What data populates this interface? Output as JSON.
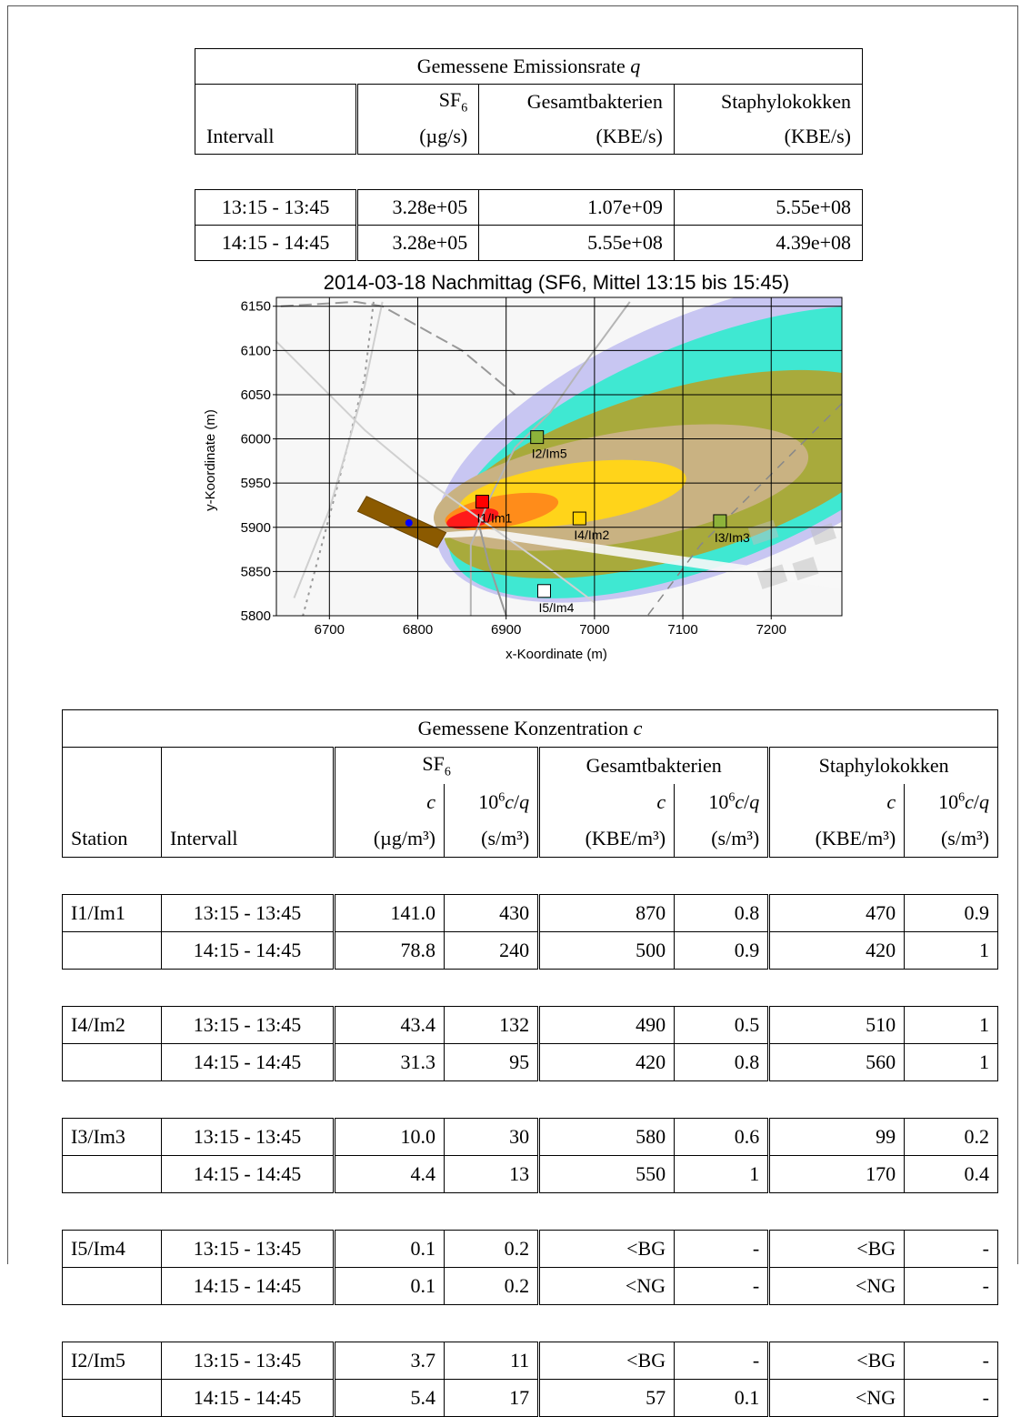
{
  "emission": {
    "title": "Gemessene Emissionsrate q",
    "col_interval": "Intervall",
    "col_sf6": "SF6",
    "col_sf6_unit": "(µg/s)",
    "col_bact": "Gesamtbakterien",
    "col_bact_unit": "(KBE/s)",
    "col_staph": "Staphylokokken",
    "col_staph_unit": "(KBE/s)",
    "rows": [
      {
        "interval": "13:15 - 13:45",
        "sf6": "3.28e+05",
        "bact": "1.07e+09",
        "staph": "5.55e+08"
      },
      {
        "interval": "14:15 - 14:45",
        "sf6": "3.28e+05",
        "bact": "5.55e+08",
        "staph": "4.39e+08"
      }
    ]
  },
  "chart_data": {
    "type": "heatmap",
    "title": "2014-03-18 Nachmittag (SF6, Mittel 13:15 bis 15:45)",
    "xlabel": "x-Koordinate (m)",
    "ylabel": "y-Koordinate (m)",
    "xlim": [
      6640,
      7280
    ],
    "ylim": [
      5800,
      6160
    ],
    "xticks": [
      6700,
      6800,
      6900,
      7000,
      7100,
      7200
    ],
    "yticks": [
      5800,
      5850,
      5900,
      5950,
      6000,
      6050,
      6100,
      6150
    ],
    "source": {
      "x": 6790,
      "y": 5905
    },
    "stations": [
      {
        "label": "I1/Im1",
        "x": 6873,
        "y": 5929,
        "color": "#ff0000"
      },
      {
        "label": "I2/Im5",
        "x": 6935,
        "y": 6002,
        "color": "#8db33a"
      },
      {
        "label": "I4/Im2",
        "x": 6983,
        "y": 5910,
        "color": "#ffd400"
      },
      {
        "label": "I3/Im3",
        "x": 7142,
        "y": 5907,
        "color": "#8db33a"
      },
      {
        "label": "I5/Im4",
        "x": 6943,
        "y": 5828,
        "color": "#ffffff"
      }
    ],
    "colors": {
      "lavender": "#c8c6f2",
      "turquoise": "#3fe8d2",
      "olive": "#a8aa3c",
      "tan": "#c9b282",
      "yellow": "#ffd41a",
      "orange": "#ff8c1a",
      "red": "#ff1a1a",
      "building": "#8b5a00"
    }
  },
  "concentration": {
    "title": "Gemessene Konzentration c",
    "grp_sf6": "SF6",
    "grp_bact": "Gesamtbakterien",
    "grp_staph": "Staphylokokken",
    "sub_c": "c",
    "sub_ratio": "10^6 c/q",
    "col_station": "Station",
    "col_interval": "Intervall",
    "unit_sf6_c": "(µg/m³)",
    "unit_ratio": "(s/m³)",
    "unit_kbe": "(KBE/m³)",
    "rows": [
      {
        "station": "I1/Im1",
        "interval": "13:15 - 13:45",
        "sf6_c": "141.0",
        "sf6_r": "430",
        "b_c": "870",
        "b_r": "0.8",
        "s_c": "470",
        "s_r": "0.9"
      },
      {
        "station": "",
        "interval": "14:15 - 14:45",
        "sf6_c": "78.8",
        "sf6_r": "240",
        "b_c": "500",
        "b_r": "0.9",
        "s_c": "420",
        "s_r": "1"
      },
      {
        "station": "I4/Im2",
        "interval": "13:15 - 13:45",
        "sf6_c": "43.4",
        "sf6_r": "132",
        "b_c": "490",
        "b_r": "0.5",
        "s_c": "510",
        "s_r": "1"
      },
      {
        "station": "",
        "interval": "14:15 - 14:45",
        "sf6_c": "31.3",
        "sf6_r": "95",
        "b_c": "420",
        "b_r": "0.8",
        "s_c": "560",
        "s_r": "1"
      },
      {
        "station": "I3/Im3",
        "interval": "13:15 - 13:45",
        "sf6_c": "10.0",
        "sf6_r": "30",
        "b_c": "580",
        "b_r": "0.6",
        "s_c": "99",
        "s_r": "0.2"
      },
      {
        "station": "",
        "interval": "14:15 - 14:45",
        "sf6_c": "4.4",
        "sf6_r": "13",
        "b_c": "550",
        "b_r": "1",
        "s_c": "170",
        "s_r": "0.4"
      },
      {
        "station": "I5/Im4",
        "interval": "13:15 - 13:45",
        "sf6_c": "0.1",
        "sf6_r": "0.2",
        "b_c": "<BG",
        "b_r": "-",
        "s_c": "<BG",
        "s_r": "-"
      },
      {
        "station": "",
        "interval": "14:15 - 14:45",
        "sf6_c": "0.1",
        "sf6_r": "0.2",
        "b_c": "<NG",
        "b_r": "-",
        "s_c": "<NG",
        "s_r": "-"
      },
      {
        "station": "I2/Im5",
        "interval": "13:15 - 13:45",
        "sf6_c": "3.7",
        "sf6_r": "11",
        "b_c": "<BG",
        "b_r": "-",
        "s_c": "<BG",
        "s_r": "-"
      },
      {
        "station": "",
        "interval": "14:15 - 14:45",
        "sf6_c": "5.4",
        "sf6_r": "17",
        "b_c": "57",
        "b_r": "0.1",
        "s_c": "<NG",
        "s_r": "-"
      }
    ]
  }
}
